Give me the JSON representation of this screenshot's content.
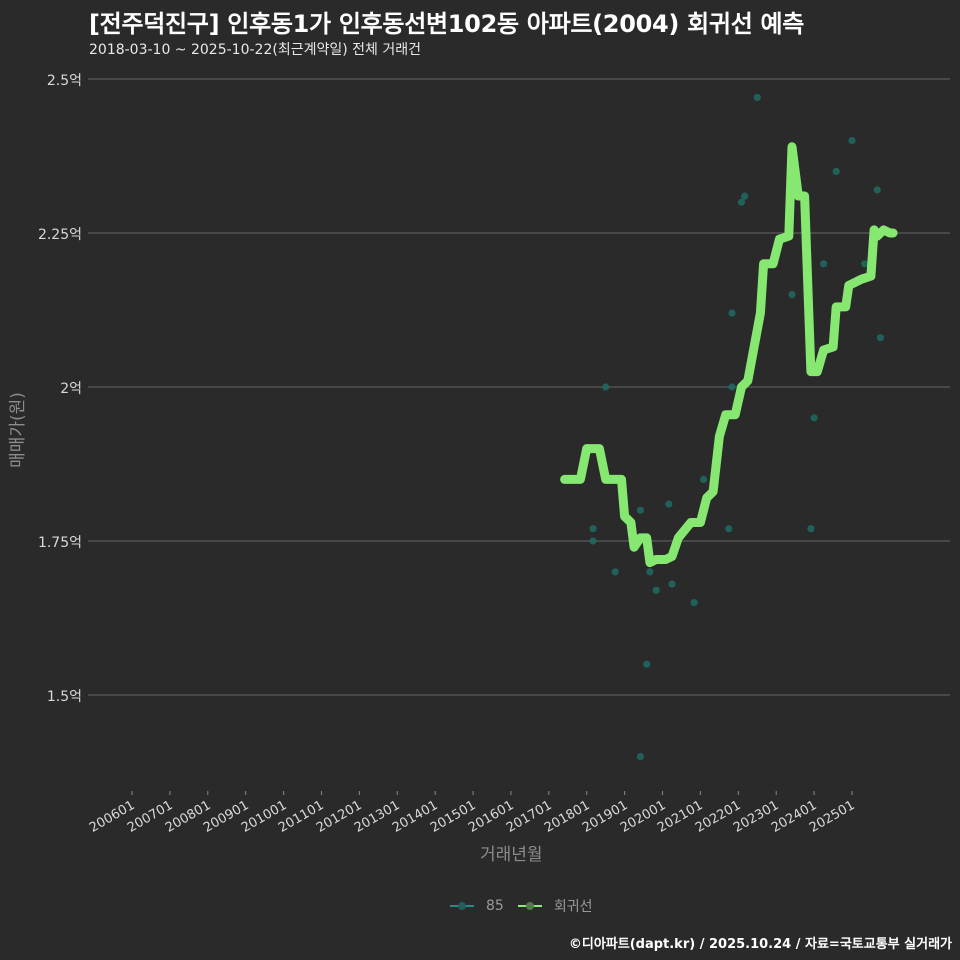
{
  "header": {
    "title": "[전주덕진구] 인후동1가 인후동선변102동 아파트(2004) 회귀선 예측",
    "subtitle": "2018-03-10 ~ 2025-10-22(최근계약일) 전체 거래건"
  },
  "axes": {
    "ylabel": "매매가(원)",
    "xlabel": "거래년월",
    "yticks": [
      "2.5억",
      "2.25억",
      "2억",
      "1.75억",
      "1.5억"
    ],
    "xticks": [
      "200601",
      "200701",
      "200801",
      "200901",
      "201001",
      "201101",
      "201201",
      "201301",
      "201401",
      "201501",
      "201601",
      "201701",
      "201801",
      "201901",
      "202001",
      "202101",
      "202201",
      "202301",
      "202401",
      "202501"
    ]
  },
  "legend": {
    "items": [
      {
        "label": "85",
        "color": "#2a8a8a"
      },
      {
        "label": "회귀선",
        "color": "#8ee87a"
      }
    ]
  },
  "caption": "©디아파트(dapt.kr) / 2025.10.24 / 자료=국토교통부 실거래가",
  "colors": {
    "background": "#2a2a2b",
    "grid": "#5a5a5a",
    "points": "#1f6b63",
    "regression": "#86e870"
  },
  "chart_data": {
    "type": "scatter",
    "title": "[전주덕진구] 인후동1가 인후동선변102동 아파트(2004) 회귀선 예측",
    "subtitle": "2018-03-10 ~ 2025-10-22(최근계약일) 전체 거래건",
    "xlabel": "거래년월",
    "ylabel": "매매가(원)",
    "ylim": [
      1.33,
      2.52
    ],
    "yunit": "억",
    "x_range": [
      "2005-10",
      "2026-03"
    ],
    "grid": "horizontal",
    "legend_position": "bottom",
    "series": [
      {
        "name": "85",
        "kind": "scatter",
        "points": [
          {
            "x": "2018-03",
            "y": 1.77
          },
          {
            "x": "2018-03",
            "y": 1.75
          },
          {
            "x": "2018-07",
            "y": 2.0
          },
          {
            "x": "2018-10",
            "y": 1.7
          },
          {
            "x": "2019-06",
            "y": 1.8
          },
          {
            "x": "2019-06",
            "y": 1.4
          },
          {
            "x": "2019-08",
            "y": 1.55
          },
          {
            "x": "2019-09",
            "y": 1.7
          },
          {
            "x": "2019-11",
            "y": 1.67
          },
          {
            "x": "2020-03",
            "y": 1.81
          },
          {
            "x": "2020-04",
            "y": 1.68
          },
          {
            "x": "2020-11",
            "y": 1.65
          },
          {
            "x": "2020-12",
            "y": 1.78
          },
          {
            "x": "2021-02",
            "y": 1.85
          },
          {
            "x": "2021-02",
            "y": 1.8
          },
          {
            "x": "2021-10",
            "y": 1.77
          },
          {
            "x": "2021-11",
            "y": 2.0
          },
          {
            "x": "2021-11",
            "y": 2.12
          },
          {
            "x": "2022-02",
            "y": 2.3
          },
          {
            "x": "2022-03",
            "y": 2.31
          },
          {
            "x": "2022-07",
            "y": 2.47
          },
          {
            "x": "2023-06",
            "y": 2.15
          },
          {
            "x": "2023-12",
            "y": 1.77
          },
          {
            "x": "2024-01",
            "y": 1.95
          },
          {
            "x": "2024-04",
            "y": 2.2
          },
          {
            "x": "2024-08",
            "y": 2.35
          },
          {
            "x": "2025-01",
            "y": 2.4
          },
          {
            "x": "2025-05",
            "y": 2.2
          },
          {
            "x": "2025-09",
            "y": 2.32
          },
          {
            "x": "2025-10",
            "y": 2.08
          }
        ]
      },
      {
        "name": "회귀선",
        "kind": "line",
        "points": [
          {
            "x": "2017-06",
            "y": 1.85
          },
          {
            "x": "2017-11",
            "y": 1.85
          },
          {
            "x": "2018-01",
            "y": 1.9
          },
          {
            "x": "2018-05",
            "y": 1.9
          },
          {
            "x": "2018-07",
            "y": 1.85
          },
          {
            "x": "2018-12",
            "y": 1.85
          },
          {
            "x": "2019-01",
            "y": 1.79
          },
          {
            "x": "2019-03",
            "y": 1.78
          },
          {
            "x": "2019-04",
            "y": 1.74
          },
          {
            "x": "2019-06",
            "y": 1.755
          },
          {
            "x": "2019-08",
            "y": 1.755
          },
          {
            "x": "2019-09",
            "y": 1.715
          },
          {
            "x": "2019-11",
            "y": 1.72
          },
          {
            "x": "2020-02",
            "y": 1.72
          },
          {
            "x": "2020-04",
            "y": 1.725
          },
          {
            "x": "2020-06",
            "y": 1.755
          },
          {
            "x": "2020-10",
            "y": 1.78
          },
          {
            "x": "2021-01",
            "y": 1.78
          },
          {
            "x": "2021-03",
            "y": 1.82
          },
          {
            "x": "2021-05",
            "y": 1.83
          },
          {
            "x": "2021-07",
            "y": 1.92
          },
          {
            "x": "2021-09",
            "y": 1.955
          },
          {
            "x": "2021-12",
            "y": 1.955
          },
          {
            "x": "2022-02",
            "y": 2.0
          },
          {
            "x": "2022-04",
            "y": 2.01
          },
          {
            "x": "2022-08",
            "y": 2.12
          },
          {
            "x": "2022-09",
            "y": 2.2
          },
          {
            "x": "2022-12",
            "y": 2.2
          },
          {
            "x": "2023-02",
            "y": 2.24
          },
          {
            "x": "2023-05",
            "y": 2.245
          },
          {
            "x": "2023-06",
            "y": 2.39
          },
          {
            "x": "2023-08",
            "y": 2.31
          },
          {
            "x": "2023-10",
            "y": 2.31
          },
          {
            "x": "2023-12",
            "y": 2.025
          },
          {
            "x": "2024-02",
            "y": 2.025
          },
          {
            "x": "2024-04",
            "y": 2.06
          },
          {
            "x": "2024-07",
            "y": 2.065
          },
          {
            "x": "2024-08",
            "y": 2.13
          },
          {
            "x": "2024-11",
            "y": 2.13
          },
          {
            "x": "2024-12",
            "y": 2.165
          },
          {
            "x": "2025-02",
            "y": 2.17
          },
          {
            "x": "2025-04",
            "y": 2.175
          },
          {
            "x": "2025-07",
            "y": 2.18
          },
          {
            "x": "2025-08",
            "y": 2.255
          },
          {
            "x": "2025-09",
            "y": 2.245
          },
          {
            "x": "2025-11",
            "y": 2.255
          },
          {
            "x": "2026-01",
            "y": 2.25
          },
          {
            "x": "2026-02",
            "y": 2.25
          }
        ]
      }
    ]
  }
}
